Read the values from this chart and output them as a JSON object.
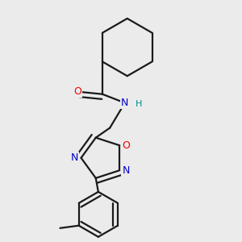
{
  "background_color": "#ebebeb",
  "bond_color": "#1a1a1a",
  "atom_colors": {
    "O": "#ee0000",
    "N": "#0000cc",
    "H": "#008888",
    "C": "#1a1a1a"
  },
  "line_width": 1.6,
  "dbo": 0.018
}
